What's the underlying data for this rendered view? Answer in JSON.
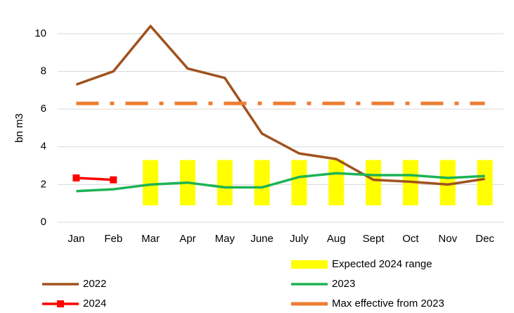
{
  "chart_data": {
    "type": "combo",
    "y_label": "bn m3",
    "categories": [
      "Jan",
      "Feb",
      "Mar",
      "Apr",
      "May",
      "June",
      "July",
      "Aug",
      "Sept",
      "Oct",
      "Nov",
      "Dec"
    ],
    "ylim": [
      0,
      11
    ],
    "yticks": [
      0,
      2,
      4,
      6,
      8,
      10
    ],
    "grid": true,
    "legend": "bottom",
    "series": [
      {
        "name": "Expected 2024 range",
        "type": "range_bar",
        "color": "#ffff00",
        "low": [
          null,
          null,
          0.9,
          0.9,
          0.9,
          0.9,
          0.9,
          0.9,
          0.9,
          0.9,
          0.9,
          0.9
        ],
        "high": [
          null,
          null,
          3.3,
          3.3,
          3.3,
          3.3,
          3.3,
          3.3,
          3.3,
          3.3,
          3.3,
          3.3
        ]
      },
      {
        "name": "2022",
        "type": "line",
        "color": "#a0521e",
        "values": [
          7.3,
          8.0,
          10.4,
          8.15,
          7.65,
          4.7,
          3.65,
          3.35,
          2.25,
          2.15,
          2.0,
          2.3
        ]
      },
      {
        "name": "2023",
        "type": "line",
        "color": "#1db355",
        "values": [
          1.65,
          1.75,
          2.0,
          2.1,
          1.85,
          1.85,
          2.4,
          2.6,
          2.5,
          2.5,
          2.35,
          2.45
        ]
      },
      {
        "name": "2024",
        "type": "line",
        "marker": "square",
        "color": "#ff0000",
        "values": [
          2.35,
          2.25,
          null,
          null,
          null,
          null,
          null,
          null,
          null,
          null,
          null,
          null
        ]
      },
      {
        "name": "Max effective from 2023",
        "type": "line",
        "style": "dash-dot",
        "color": "#ed7d31",
        "values": [
          6.3,
          6.3,
          6.3,
          6.3,
          6.3,
          6.3,
          6.3,
          6.3,
          6.3,
          6.3,
          6.3,
          6.3
        ]
      }
    ]
  }
}
